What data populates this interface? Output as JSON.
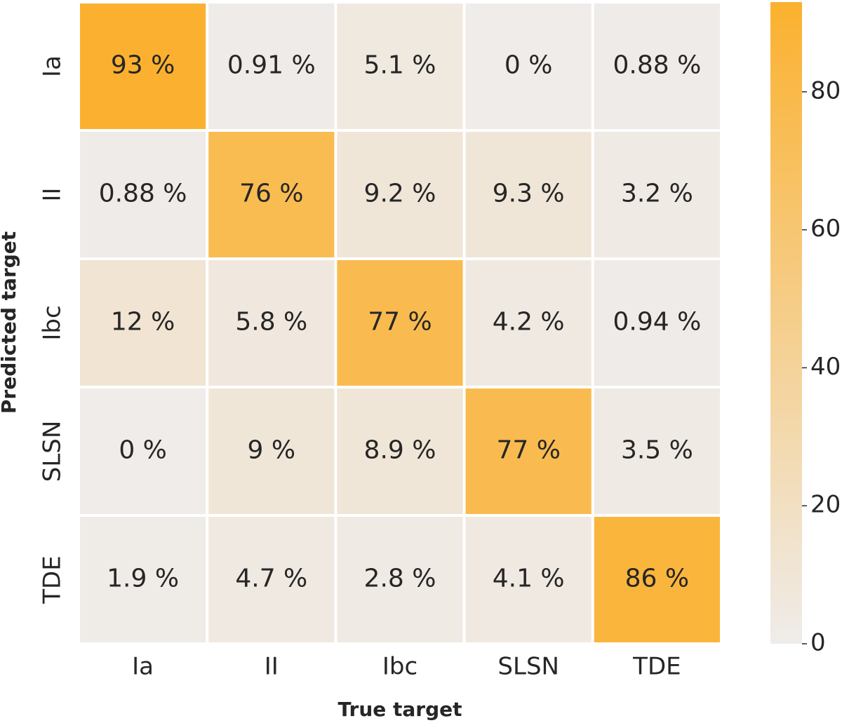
{
  "chart_data": {
    "type": "heatmap",
    "x_label": "True target",
    "y_label": "Predicted target",
    "x_categories": [
      "Ia",
      "II",
      "Ibc",
      "SLSN",
      "TDE"
    ],
    "y_categories": [
      "Ia",
      "II",
      "Ibc",
      "SLSN",
      "TDE"
    ],
    "values": [
      [
        93,
        0.91,
        5.1,
        0,
        0.88
      ],
      [
        0.88,
        76,
        9.2,
        9.3,
        3.2
      ],
      [
        12,
        5.8,
        77,
        4.2,
        0.94
      ],
      [
        0,
        9,
        8.9,
        77,
        3.5
      ],
      [
        1.9,
        4.7,
        2.8,
        4.1,
        86
      ]
    ],
    "value_labels": [
      [
        "93 %",
        "0.91 %",
        "5.1 %",
        "0 %",
        "0.88 %"
      ],
      [
        "0.88 %",
        "76 %",
        "9.2 %",
        "9.3 %",
        "3.2 %"
      ],
      [
        "12 %",
        "5.8 %",
        "77 %",
        "4.2 %",
        "0.94 %"
      ],
      [
        "0 %",
        "9 %",
        "8.9 %",
        "77 %",
        "3.5 %"
      ],
      [
        "1.9 %",
        "4.7 %",
        "2.8 %",
        "4.1 %",
        "86 %"
      ]
    ],
    "colors": [
      "#efecea",
      "#fbb12f"
    ],
    "colorbar_lim": [
      0,
      93
    ],
    "colorbar_ticks": [
      0,
      20,
      40,
      60,
      80
    ]
  }
}
